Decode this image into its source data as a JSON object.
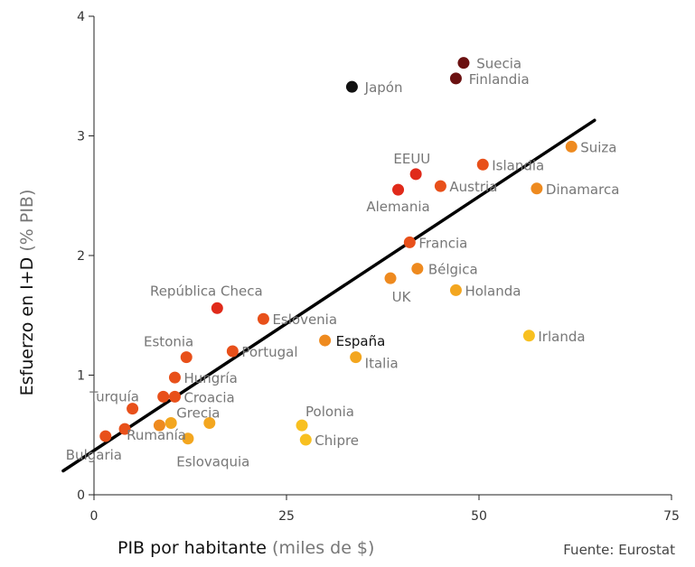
{
  "chart_data": {
    "type": "scatter",
    "title": "",
    "xlabel_main": "PIB por habitante",
    "xlabel_unit": "(miles de $)",
    "ylabel_main": "Esfuerzo en I+D",
    "ylabel_unit": "(% PIB)",
    "xlim": [
      0,
      75
    ],
    "ylim": [
      0,
      4
    ],
    "xticks": [
      0,
      25,
      50,
      75
    ],
    "yticks": [
      0,
      1,
      2,
      3,
      4
    ],
    "trendline": {
      "x": [
        -4,
        65
      ],
      "y": [
        0.2,
        3.13
      ],
      "color": "#000000"
    },
    "points": [
      {
        "label": "Suecia",
        "x": 48.0,
        "y": 3.61,
        "color": "#6b1111"
      },
      {
        "label": "Finlandia",
        "x": 47.0,
        "y": 3.48,
        "color": "#6b1111"
      },
      {
        "label": "Japón",
        "x": 33.5,
        "y": 3.41,
        "color": "#111111"
      },
      {
        "label": "Suiza",
        "x": 62.0,
        "y": 2.91,
        "color": "#ee8a1f"
      },
      {
        "label": "EEUU",
        "x": 41.8,
        "y": 2.68,
        "color": "#e02a1a"
      },
      {
        "label": "Islandia",
        "x": 50.5,
        "y": 2.76,
        "color": "#e8501a"
      },
      {
        "label": "Austria",
        "x": 45.0,
        "y": 2.58,
        "color": "#e8501a"
      },
      {
        "label": "Dinamarca",
        "x": 57.5,
        "y": 2.56,
        "color": "#ee8a1f"
      },
      {
        "label": "Alemania",
        "x": 39.5,
        "y": 2.55,
        "color": "#e02a1a"
      },
      {
        "label": "Francia",
        "x": 41.0,
        "y": 2.11,
        "color": "#e8501a"
      },
      {
        "label": "Bélgica",
        "x": 42.0,
        "y": 1.89,
        "color": "#ee8a1f"
      },
      {
        "label": "UK",
        "x": 38.5,
        "y": 1.81,
        "color": "#ee8a1f"
      },
      {
        "label": "Holanda",
        "x": 47.0,
        "y": 1.71,
        "color": "#f3a61f"
      },
      {
        "label": "República Checa",
        "x": 16.0,
        "y": 1.56,
        "color": "#e02a1a"
      },
      {
        "label": "Eslovenia",
        "x": 22.0,
        "y": 1.47,
        "color": "#e8501a"
      },
      {
        "label": "Irlanda",
        "x": 56.5,
        "y": 1.33,
        "color": "#f8c020"
      },
      {
        "label": "España",
        "x": 30.0,
        "y": 1.29,
        "color": "#ee8a1f"
      },
      {
        "label": "Portugal",
        "x": 18.0,
        "y": 1.2,
        "color": "#e8501a"
      },
      {
        "label": "Estonia",
        "x": 12.0,
        "y": 1.15,
        "color": "#e8501a"
      },
      {
        "label": "Italia",
        "x": 34.0,
        "y": 1.15,
        "color": "#f3a61f"
      },
      {
        "label": "Hungría",
        "x": 10.5,
        "y": 0.98,
        "color": "#e8501a"
      },
      {
        "label": "Turquía",
        "x": 9.0,
        "y": 0.82,
        "color": "#e8501a"
      },
      {
        "label": "Croacia",
        "x": 10.5,
        "y": 0.82,
        "color": "#e8501a"
      },
      {
        "label": "Turquía",
        "x": 5.0,
        "y": 0.72,
        "color": "#e8501a"
      },
      {
        "label": "Grecia",
        "x": 10.0,
        "y": 0.6,
        "color": "#f3a61f"
      },
      {
        "label": "Polonia",
        "x": 27.0,
        "y": 0.58,
        "color": "#f8c020"
      },
      {
        "label": "Eslovaquia",
        "x": 15.0,
        "y": 0.6,
        "color": "#f3a61f"
      },
      {
        "label": "Rumanía",
        "x": 4.0,
        "y": 0.55,
        "color": "#e8501a"
      },
      {
        "label": "Chipre",
        "x": 27.5,
        "y": 0.46,
        "color": "#f8c020"
      },
      {
        "label": "Bulgaria",
        "x": 1.5,
        "y": 0.49,
        "color": "#e8501a"
      },
      {
        "label": "Grecia",
        "x": 8.5,
        "y": 0.58,
        "color": "#ee8a1f"
      },
      {
        "label": "Eslovaquia",
        "x": 12.2,
        "y": 0.47,
        "color": "#f3a61f"
      }
    ],
    "labels": [
      {
        "text": "Suecia",
        "x": 48.5,
        "y": 3.61,
        "anchor": "start",
        "dx": 10,
        "dy": 6
      },
      {
        "text": "Finlandia",
        "x": 47.5,
        "y": 3.48,
        "anchor": "start",
        "dx": 10,
        "dy": 6
      },
      {
        "text": "Japón",
        "x": 34.0,
        "y": 3.41,
        "anchor": "start",
        "dx": 10,
        "dy": 6
      },
      {
        "text": "Suiza",
        "x": 62.0,
        "y": 2.91,
        "anchor": "start",
        "dx": 10,
        "dy": 6
      },
      {
        "text": "EEUU",
        "x": 42.0,
        "y": 2.68,
        "anchor": "middle",
        "dx": -6,
        "dy": -12
      },
      {
        "text": "Islandia",
        "x": 50.5,
        "y": 2.76,
        "anchor": "start",
        "dx": 10,
        "dy": 6
      },
      {
        "text": "Austria",
        "x": 45.0,
        "y": 2.58,
        "anchor": "start",
        "dx": 10,
        "dy": 6
      },
      {
        "text": "Dinamarca",
        "x": 57.5,
        "y": 2.56,
        "anchor": "start",
        "dx": 10,
        "dy": 6
      },
      {
        "text": "Alemania",
        "x": 39.5,
        "y": 2.55,
        "anchor": "middle",
        "dx": 0,
        "dy": 24
      },
      {
        "text": "Francia",
        "x": 41.0,
        "y": 2.11,
        "anchor": "start",
        "dx": 10,
        "dy": 6
      },
      {
        "text": "Bélgica",
        "x": 42.0,
        "y": 1.89,
        "anchor": "start",
        "dx": 12,
        "dy": 6
      },
      {
        "text": "UK",
        "x": 38.5,
        "y": 1.81,
        "anchor": "middle",
        "dx": 12,
        "dy": 26
      },
      {
        "text": "Holanda",
        "x": 47.0,
        "y": 1.71,
        "anchor": "start",
        "dx": 10,
        "dy": 6
      },
      {
        "text": "República Checa",
        "x": 16.0,
        "y": 1.56,
        "anchor": "middle",
        "dx": -12,
        "dy": -14
      },
      {
        "text": "Eslovenia",
        "x": 22.0,
        "y": 1.47,
        "anchor": "start",
        "dx": 10,
        "dy": 6
      },
      {
        "text": "Irlanda",
        "x": 56.5,
        "y": 1.33,
        "anchor": "start",
        "dx": 10,
        "dy": 6
      },
      {
        "text": "España",
        "x": 30.0,
        "y": 1.29,
        "anchor": "start",
        "dx": 12,
        "dy": 6,
        "highlight": true
      },
      {
        "text": "Portugal",
        "x": 18.0,
        "y": 1.2,
        "anchor": "start",
        "dx": 10,
        "dy": 6
      },
      {
        "text": "Estonia",
        "x": 12.0,
        "y": 1.15,
        "anchor": "end",
        "dx": 8,
        "dy": -12
      },
      {
        "text": "Italia",
        "x": 34.0,
        "y": 1.15,
        "anchor": "start",
        "dx": 10,
        "dy": 12
      },
      {
        "text": "Hungría",
        "x": 10.5,
        "y": 0.98,
        "anchor": "start",
        "dx": 10,
        "dy": 6
      },
      {
        "text": "Turquía",
        "x": 5.0,
        "y": 0.72,
        "anchor": "middle",
        "dx": -20,
        "dy": -8
      },
      {
        "text": "Croacia",
        "x": 10.5,
        "y": 0.82,
        "anchor": "start",
        "dx": 10,
        "dy": 6
      },
      {
        "text": "Grecia",
        "x": 10.0,
        "y": 0.6,
        "anchor": "start",
        "dx": 6,
        "dy": -6
      },
      {
        "text": "Polonia",
        "x": 27.0,
        "y": 0.58,
        "anchor": "start",
        "dx": 4,
        "dy": -10
      },
      {
        "text": "Rumanía",
        "x": 4.0,
        "y": 0.55,
        "anchor": "start",
        "dx": 2,
        "dy": 12
      },
      {
        "text": "Chipre",
        "x": 27.5,
        "y": 0.46,
        "anchor": "start",
        "dx": 10,
        "dy": 6
      },
      {
        "text": "Bulgaria",
        "x": 1.5,
        "y": 0.49,
        "anchor": "start",
        "dx": -44,
        "dy": 26
      },
      {
        "text": "Eslovaquia",
        "x": 15.0,
        "y": 0.6,
        "anchor": "middle",
        "dx": 4,
        "dy": 48
      }
    ],
    "grid": false,
    "source": "Fuente:  Eurostat"
  }
}
